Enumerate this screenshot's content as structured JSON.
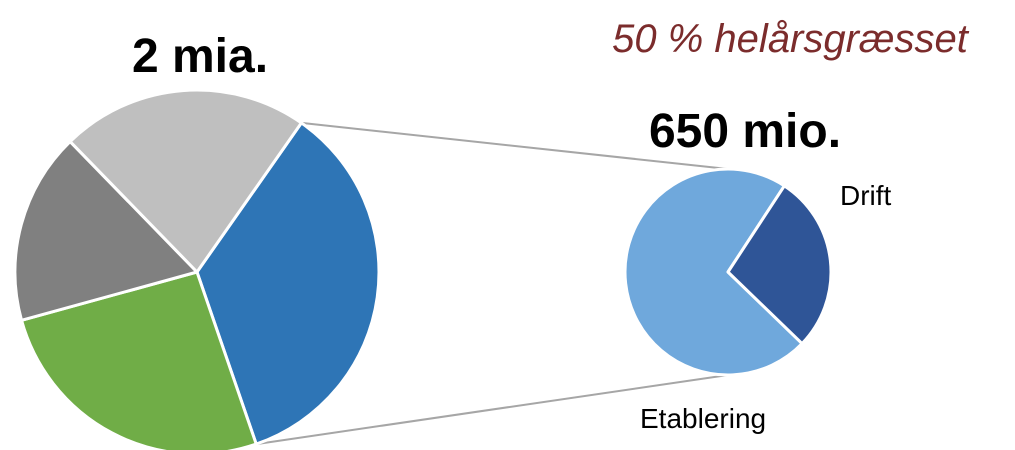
{
  "chart_data": [
    {
      "type": "pie",
      "total_label": "2 mia.",
      "slices": [
        {
          "name": "",
          "value": 35,
          "color": "#2e75b6"
        },
        {
          "name": "",
          "value": 26,
          "color": "#70ad47"
        },
        {
          "name": "",
          "value": 17,
          "color": "#808080"
        },
        {
          "name": "",
          "value": 22,
          "color": "#bfbfbf"
        }
      ],
      "highlighted_slice": 0
    },
    {
      "type": "pie",
      "total_label": "650 mio.",
      "subtitle": "50 % helårsgræsset",
      "subtitle_color": "#7b2c2c",
      "slices": [
        {
          "name": "Drift",
          "value": 72,
          "color": "#6fa8dc"
        },
        {
          "name": "Etablering",
          "value": 28,
          "color": "#2f5597"
        }
      ]
    }
  ]
}
